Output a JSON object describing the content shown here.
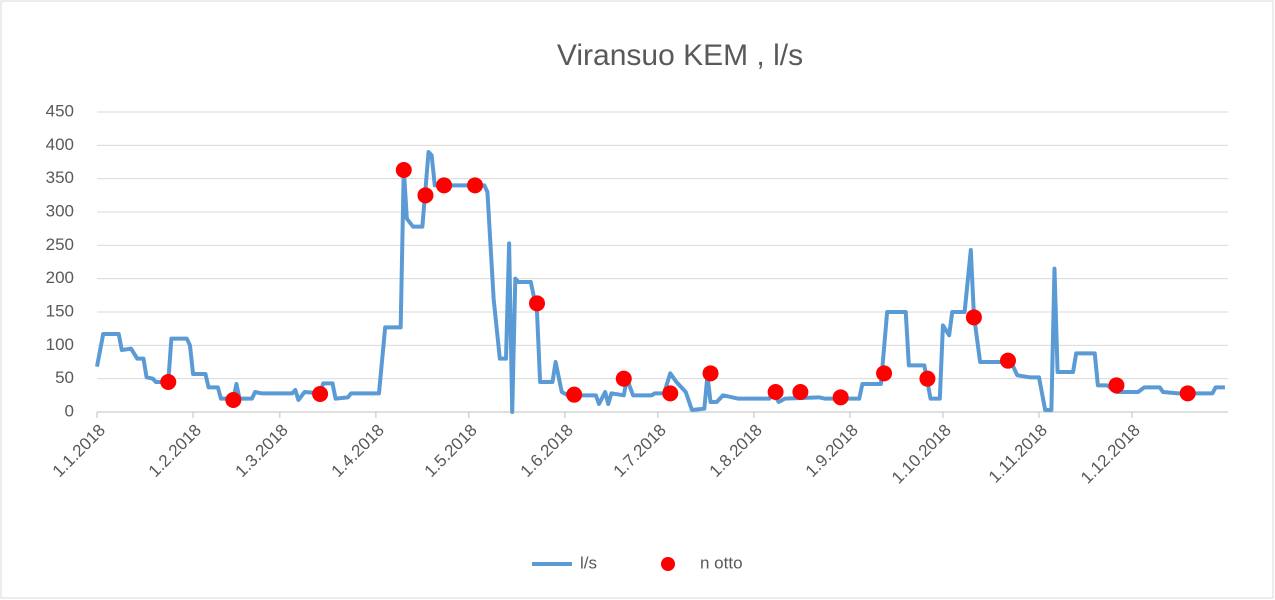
{
  "chart_data": {
    "type": "line",
    "title": "Viransuo KEM , l/s",
    "xlim": [
      "1.1.2018",
      "1.1.2019"
    ],
    "xticks": [
      "1.1.2018",
      "1.2.2018",
      "1.3.2018",
      "1.4.2018",
      "1.5.2018",
      "1.6.2018",
      "1.7.2018",
      "1.8.2018",
      "1.9.2018",
      "1.10.2018",
      "1.11.2018",
      "1.12.2018"
    ],
    "ylim": [
      0,
      450
    ],
    "yticks": [
      0,
      50,
      100,
      150,
      200,
      250,
      300,
      350,
      400,
      450
    ],
    "grid": true,
    "legend": "bottom",
    "series": [
      {
        "name": "l/s",
        "type": "line",
        "color": "#5b9bd5",
        "x": [
          "1.1.2018",
          "3.1.2018",
          "8.1.2018",
          "9.1.2018",
          "12.1.2018",
          "14.1.2018",
          "16.1.2018",
          "17.1.2018",
          "19.1.2018",
          "20.1.2018",
          "24.1.2018",
          "25.1.2018",
          "30.1.2018",
          "31.1.2018",
          "1.2.2018",
          "5.2.2018",
          "6.2.2018",
          "9.2.2018",
          "10.2.2018",
          "14.2.2018",
          "15.2.2018",
          "16.2.2018",
          "20.2.2018",
          "21.2.2018",
          "23.2.2018",
          "5.3.2018",
          "6.3.2018",
          "7.3.2018",
          "9.3.2018",
          "14.3.2018",
          "15.3.2018",
          "18.3.2018",
          "19.3.2018",
          "23.3.2018",
          "24.3.2018",
          "2.4.2018",
          "4.4.2018",
          "9.4.2018",
          "10.4.2018",
          "11.4.2018",
          "13.4.2018",
          "16.4.2018",
          "18.4.2018",
          "19.4.2018",
          "20.4.2018",
          "6.5.2018",
          "7.5.2018",
          "9.5.2018",
          "11.5.2018",
          "13.5.2018",
          "14.5.2018",
          "15.5.2018",
          "16.5.2018",
          "17.5.2018",
          "21.5.2018",
          "23.5.2018",
          "24.5.2018",
          "28.5.2018",
          "29.5.2018",
          "31.5.2018",
          "2.6.2018",
          "11.6.2018",
          "12.6.2018",
          "14.6.2018",
          "15.6.2018",
          "16.6.2018",
          "20.6.2018",
          "21.6.2018",
          "23.6.2018",
          "29.6.2018",
          "30.6.2018",
          "3.7.2018",
          "5.7.2018",
          "7.7.2018",
          "10.7.2018",
          "12.7.2018",
          "16.7.2018",
          "17.7.2018",
          "18.7.2018",
          "20.7.2018",
          "22.7.2018",
          "27.7.2018",
          "6.8.2018",
          "7.8.2018",
          "9.8.2018",
          "11.8.2018",
          "22.8.2018",
          "24.8.2018",
          "4.9.2018",
          "5.9.2018",
          "11.9.2018",
          "13.9.2018",
          "19.9.2018",
          "20.9.2018",
          "25.9.2018",
          "27.9.2018",
          "30.9.2018",
          "1.10.2018",
          "3.10.2018",
          "4.10.2018",
          "8.10.2018",
          "10.10.2018",
          "11.10.2018",
          "13.10.2018",
          "23.10.2018",
          "25.10.2018",
          "29.10.2018",
          "1.11.2018",
          "3.11.2018",
          "5.11.2018",
          "6.11.2018",
          "7.11.2018",
          "12.11.2018",
          "13.11.2018",
          "19.11.2018",
          "20.11.2018",
          "23.11.2018",
          "26.11.2018",
          "3.12.2018",
          "5.12.2018",
          "10.12.2018",
          "11.12.2018",
          "16.12.2018",
          "27.12.2018",
          "28.12.2018",
          "31.12.2018"
        ],
        "values": [
          68,
          117,
          117,
          93,
          95,
          80,
          80,
          52,
          50,
          45,
          45,
          110,
          110,
          100,
          57,
          57,
          37,
          37,
          20,
          20,
          42,
          20,
          20,
          30,
          28,
          28,
          33,
          18,
          30,
          28,
          43,
          43,
          20,
          22,
          28,
          28,
          127,
          127,
          365,
          290,
          278,
          278,
          390,
          385,
          340,
          340,
          330,
          170,
          80,
          80,
          253,
          0,
          200,
          195,
          195,
          150,
          45,
          45,
          75,
          30,
          25,
          25,
          12,
          30,
          12,
          28,
          25,
          50,
          25,
          25,
          28,
          28,
          58,
          45,
          30,
          3,
          5,
          55,
          15,
          15,
          25,
          20,
          20,
          30,
          15,
          20,
          22,
          20,
          20,
          42,
          42,
          150,
          150,
          70,
          70,
          20,
          20,
          130,
          115,
          150,
          150,
          243,
          145,
          75,
          75,
          55,
          52,
          52,
          3,
          3,
          215,
          60,
          60,
          88,
          88,
          40,
          40,
          30,
          30,
          37,
          37,
          30,
          28,
          28,
          37,
          37
        ]
      },
      {
        "name": "n otto",
        "type": "scatter",
        "color": "#ff0000",
        "x": [
          "24.1.2018",
          "14.2.2018",
          "14.3.2018",
          "10.4.2018",
          "17.4.2018",
          "23.4.2018",
          "3.5.2018",
          "23.5.2018",
          "4.6.2018",
          "20.6.2018",
          "5.7.2018",
          "18.7.2018",
          "8.8.2018",
          "16.8.2018",
          "29.8.2018",
          "12.9.2018",
          "26.9.2018",
          "11.10.2018",
          "22.10.2018",
          "26.11.2018",
          "19.12.2018"
        ],
        "values": [
          45,
          18,
          27,
          363,
          325,
          340,
          340,
          163,
          26,
          50,
          28,
          58,
          30,
          30,
          22,
          58,
          50,
          142,
          77,
          40,
          28
        ]
      }
    ]
  }
}
